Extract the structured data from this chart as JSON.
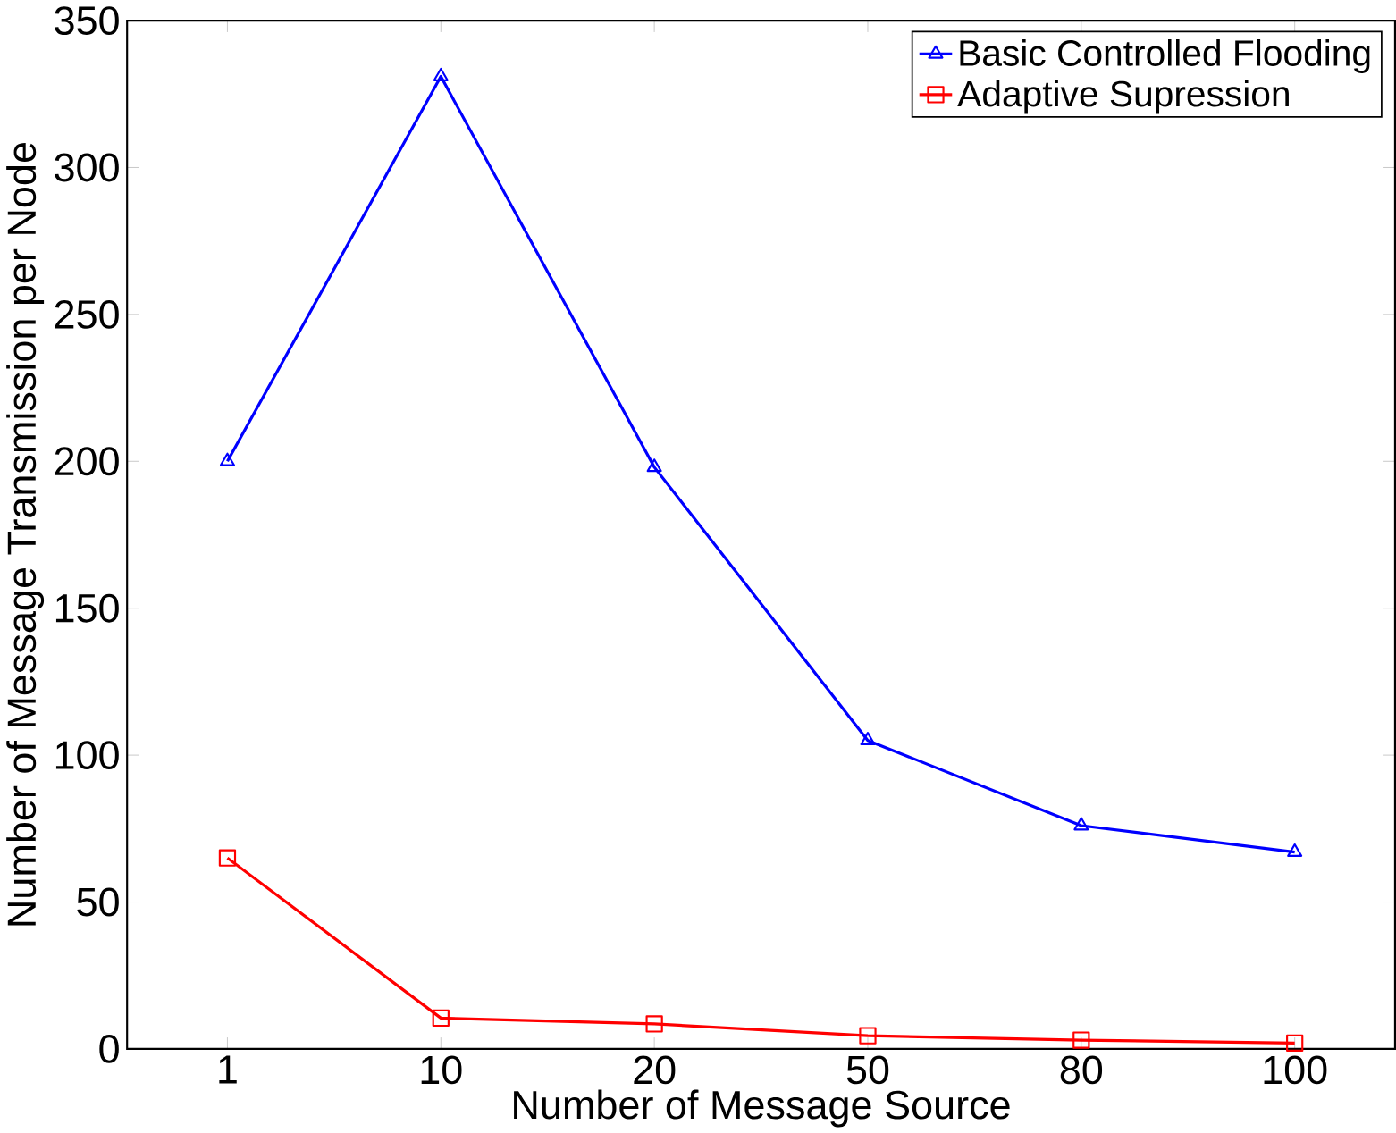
{
  "chart_data": {
    "type": "line",
    "xlabel": "Number of Message Source",
    "ylabel": "Number of Message Transmission per Node",
    "categories": [
      "1",
      "10",
      "20",
      "50",
      "80",
      "100"
    ],
    "series": [
      {
        "name": "Basic Controlled Flooding",
        "color": "#0000ff",
        "marker": "triangle",
        "values": [
          200,
          331,
          198,
          105,
          76,
          67
        ]
      },
      {
        "name": "Adaptive Supression",
        "color": "#ff0000",
        "marker": "square",
        "values": [
          65,
          10.5,
          8.5,
          4.5,
          3,
          2
        ]
      }
    ],
    "ylim": [
      0,
      350
    ],
    "yticks": [
      0,
      50,
      100,
      150,
      200,
      250,
      300,
      350
    ],
    "legend": "top right",
    "grid": false,
    "line_style": "solid"
  }
}
